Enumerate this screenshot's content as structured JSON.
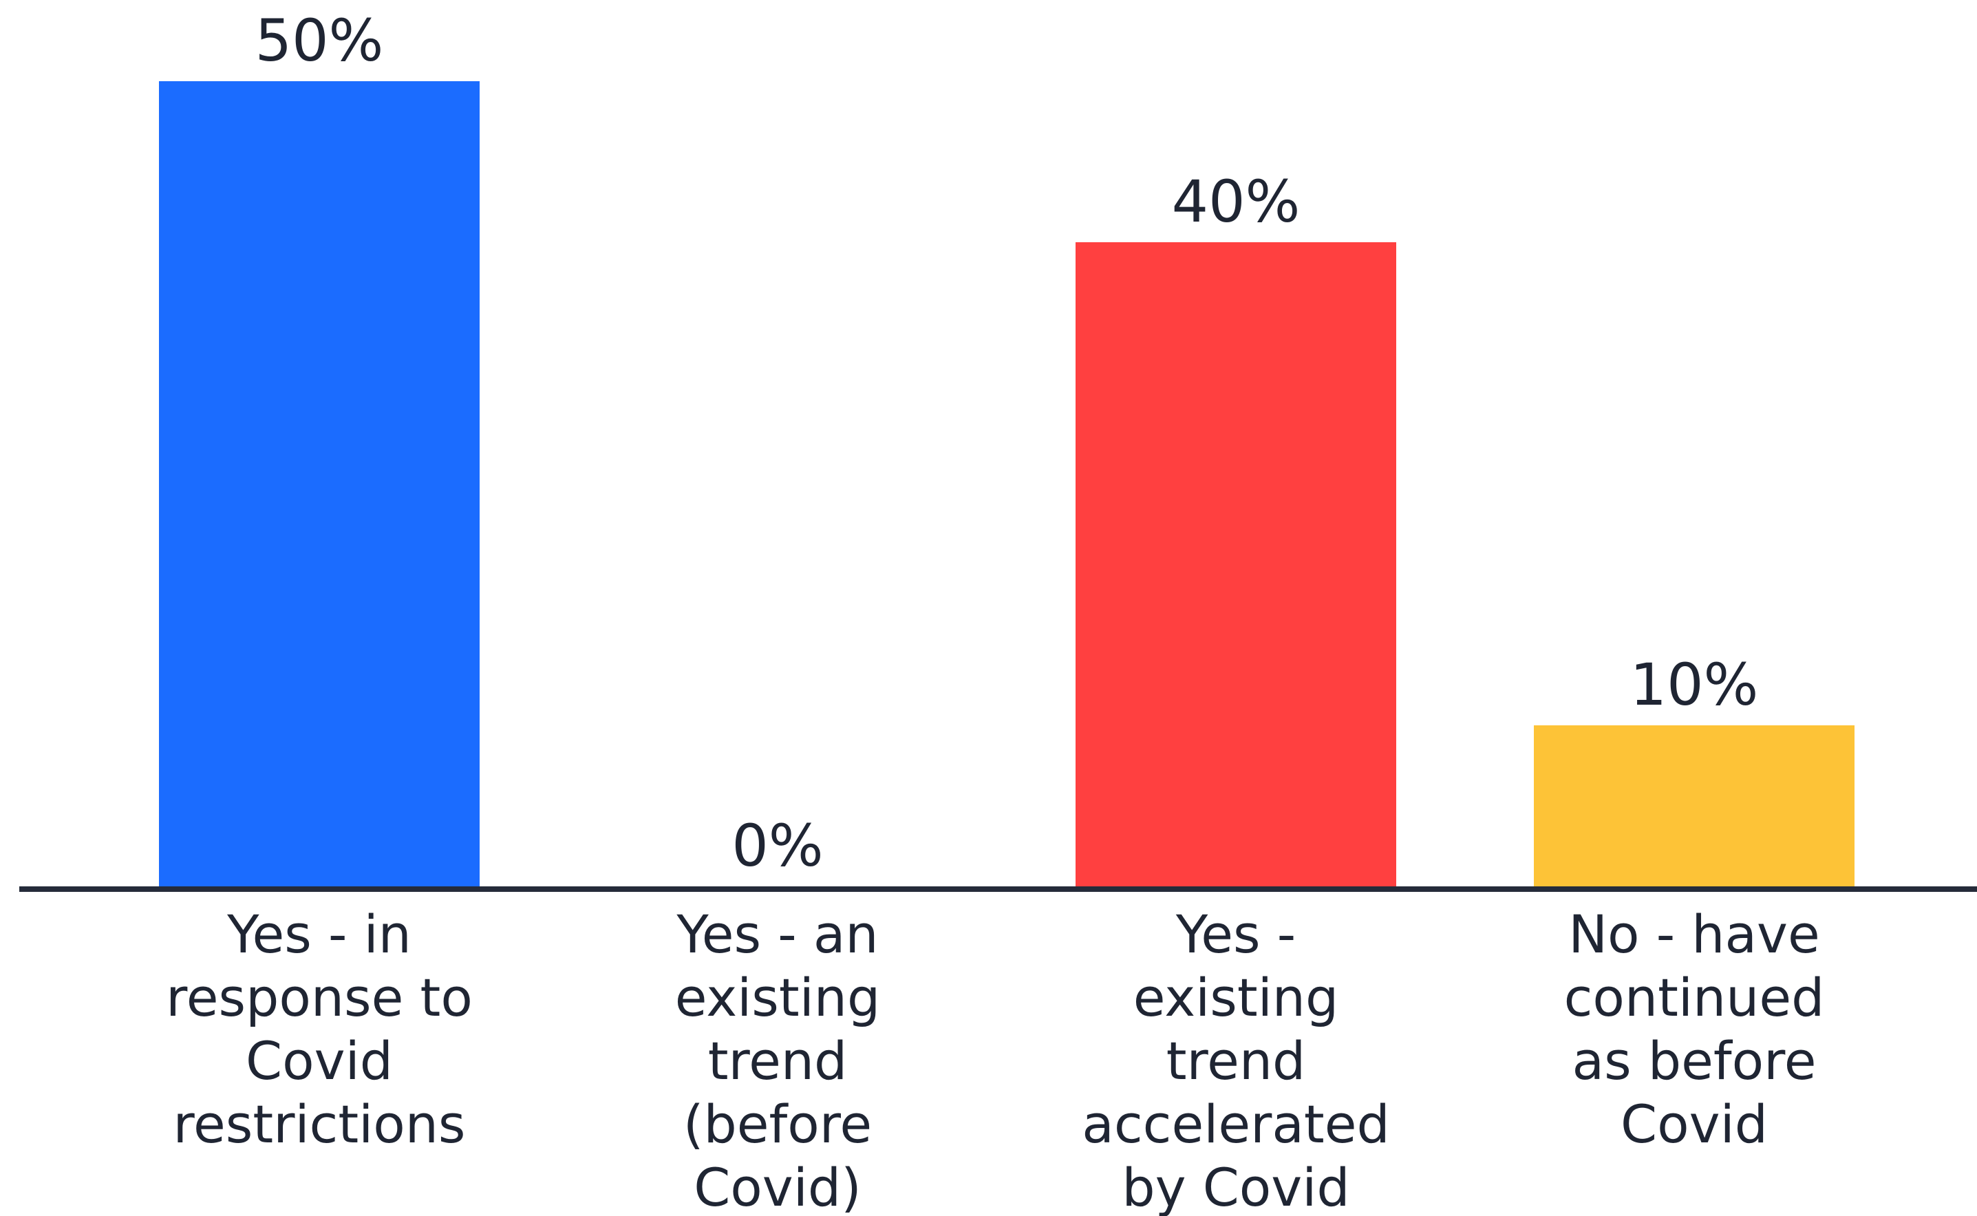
{
  "chart_data": {
    "type": "bar",
    "categories": [
      [
        "Yes - in",
        "response to",
        "Covid",
        "restrictions"
      ],
      [
        "Yes - an",
        "existing",
        "trend",
        "(before",
        "Covid)"
      ],
      [
        "Yes -",
        "existing",
        "trend",
        "accelerated",
        "by Covid"
      ],
      [
        "No - have",
        "continued",
        "as before",
        "Covid"
      ]
    ],
    "values": [
      50,
      0,
      40,
      10
    ],
    "value_labels": [
      "50%",
      "0%",
      "40%",
      "10%"
    ],
    "colors": [
      "#1b6cff",
      "#1b6cff",
      "#ff4040",
      "#fdc337"
    ],
    "ylim": [
      0,
      50
    ],
    "grid": false,
    "title": "",
    "xlabel": "",
    "ylabel": ""
  }
}
